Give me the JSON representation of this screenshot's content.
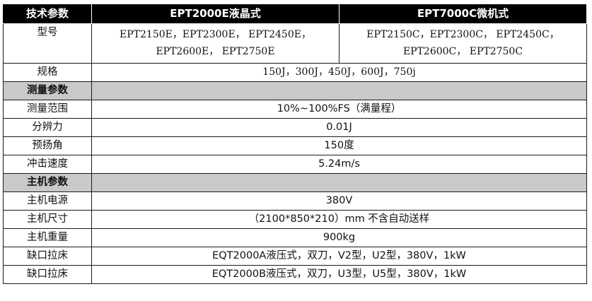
{
  "header": {
    "col1": "技术参数",
    "col2": "EPT2000E液晶式",
    "col3": "EPT7000C微机式"
  },
  "model_row": {
    "label": "型号",
    "e_line1": "EPT2150E，EPT2300E， EPT2450E，",
    "e_line2": "EPT2600E， EPT2750E",
    "c_line1": "EPT2150C，EPT2300C， EPT2450C，",
    "c_line2": "EPT2600C， EPT2750C"
  },
  "spec_row": {
    "label": "规格",
    "value": "150J，300J，450J，600J，750j"
  },
  "section_measure": {
    "label": "测量参数"
  },
  "measure_rows": [
    {
      "label": "测量范围",
      "value": "10%~100%FS（满量程）"
    },
    {
      "label": "分辨力",
      "value": "0.01J"
    },
    {
      "label": "预扬角",
      "value": "150度"
    },
    {
      "label": "冲击速度",
      "value": "5.24m/s"
    }
  ],
  "section_host": {
    "label": "主机参数"
  },
  "host_rows": [
    {
      "label": "主机电源",
      "value": "380V"
    },
    {
      "label": "主机尺寸",
      "value": "（2100*850*210）mm 不含自动送样"
    },
    {
      "label": "主机重量",
      "value": "900kg"
    },
    {
      "label": "缺口拉床",
      "value": "EQT2000A液压式，双刀，V2型，U2型，380V，1kW"
    },
    {
      "label": "缺口拉床",
      "value": "EQT2000B液压式，双刀，U3型，U5型，380V，1kW"
    }
  ]
}
